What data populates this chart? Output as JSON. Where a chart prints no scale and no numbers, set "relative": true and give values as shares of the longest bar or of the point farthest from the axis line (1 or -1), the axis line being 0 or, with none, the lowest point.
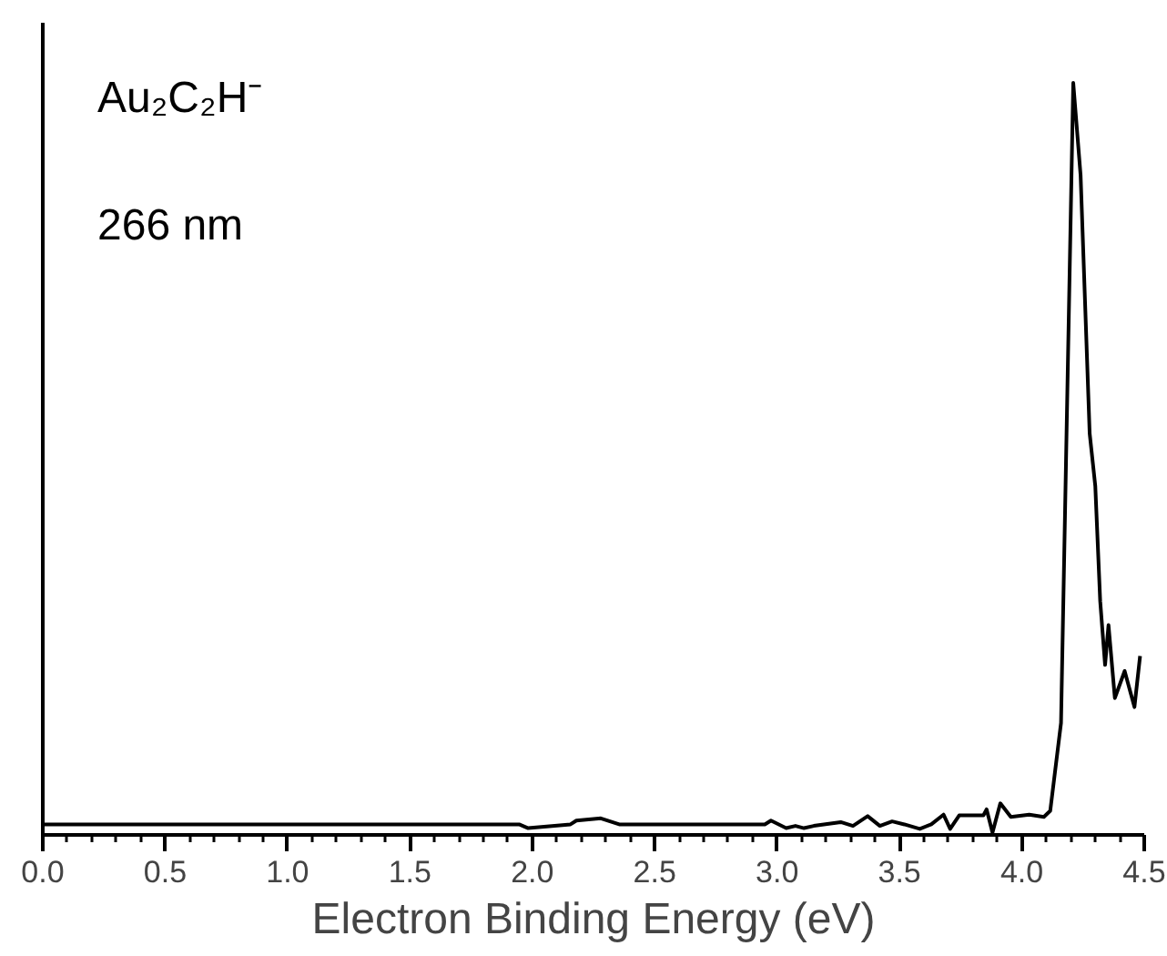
{
  "chart_data": {
    "type": "line",
    "relative": true,
    "xlabel": "Electron Binding Energy (eV)",
    "annotations": [
      "Au₂C₂H⁻",
      "266 nm"
    ],
    "xlim": [
      0,
      4.5
    ],
    "xticks": [
      {
        "value": 0,
        "label": "0.0"
      },
      0.5,
      {
        "value": 1,
        "label": "1.0"
      },
      1.5,
      {
        "value": 2,
        "label": "2.0"
      },
      2.5,
      {
        "value": 3,
        "label": "3.0"
      },
      3.5,
      {
        "value": 4,
        "label": "4.0"
      },
      4.5
    ],
    "grid": false,
    "marker": "none",
    "line_style": "solid",
    "series": [
      {
        "color": "#000000",
        "x": [
          0,
          1.946,
          1.983,
          2.156,
          2.18,
          2.28,
          2.355,
          2.95,
          2.975,
          3.037,
          3.075,
          3.11,
          3.15,
          3.26,
          3.31,
          3.37,
          3.42,
          3.47,
          3.52,
          3.583,
          3.63,
          3.68,
          3.707,
          3.744,
          3.77,
          3.843,
          3.856,
          3.88,
          3.912,
          3.955,
          4.03,
          4.09,
          4.116,
          4.16,
          4.21,
          4.24,
          4.277,
          4.3,
          4.32,
          4.34,
          4.354,
          4.38,
          4.42,
          4.46,
          4.483
        ],
        "values": [
          0.014,
          0.014,
          0.009,
          0.014,
          0.019,
          0.022,
          0.014,
          0.014,
          0.019,
          0.009,
          0.012,
          0.009,
          0.012,
          0.017,
          0.012,
          0.025,
          0.012,
          0.018,
          0.014,
          0.008,
          0.014,
          0.027,
          0.008,
          0.026,
          0.026,
          0.026,
          0.034,
          0.003,
          0.042,
          0.024,
          0.027,
          0.024,
          0.032,
          0.149,
          1.0,
          0.877,
          0.534,
          0.464,
          0.311,
          0.226,
          0.279,
          0.182,
          0.218,
          0.17,
          0.238
        ]
      }
    ]
  }
}
